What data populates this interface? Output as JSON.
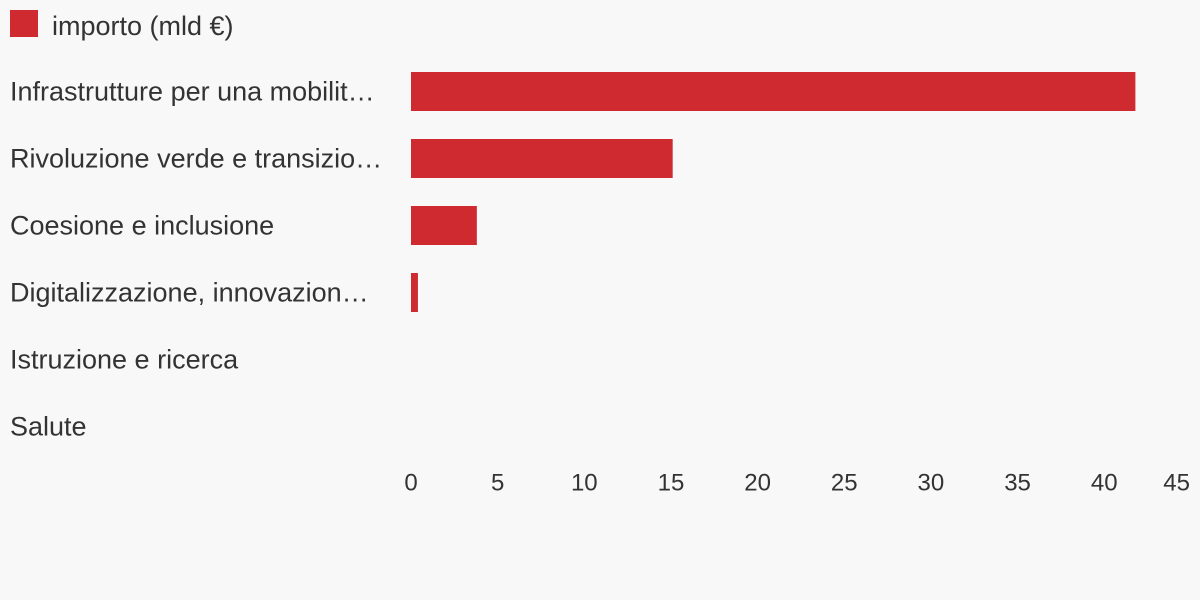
{
  "colors": {
    "background": "#f9f8f8",
    "bar": "#d02a31",
    "text": "#333333"
  },
  "legend": {
    "label": "importo (mld €)",
    "position": "top-left"
  },
  "chart_data": {
    "type": "bar",
    "orientation": "horizontal",
    "title": "",
    "xlabel": "",
    "ylabel": "",
    "categories": [
      "Infrastrutture per una mobilit…",
      "Rivoluzione verde e transizio…",
      "Coesione e inclusione",
      "Digitalizzazione, innovazion…",
      "Istruzione e ricerca",
      "Salute"
    ],
    "series": [
      {
        "name": "importo (mld €)",
        "values": [
          41.8,
          15.1,
          3.8,
          0.4,
          0,
          0
        ]
      }
    ],
    "xlim": [
      0,
      45
    ],
    "xticks": [
      "0",
      "5",
      "10",
      "15",
      "20",
      "25",
      "30",
      "35",
      "40",
      "45"
    ],
    "grid": false
  }
}
